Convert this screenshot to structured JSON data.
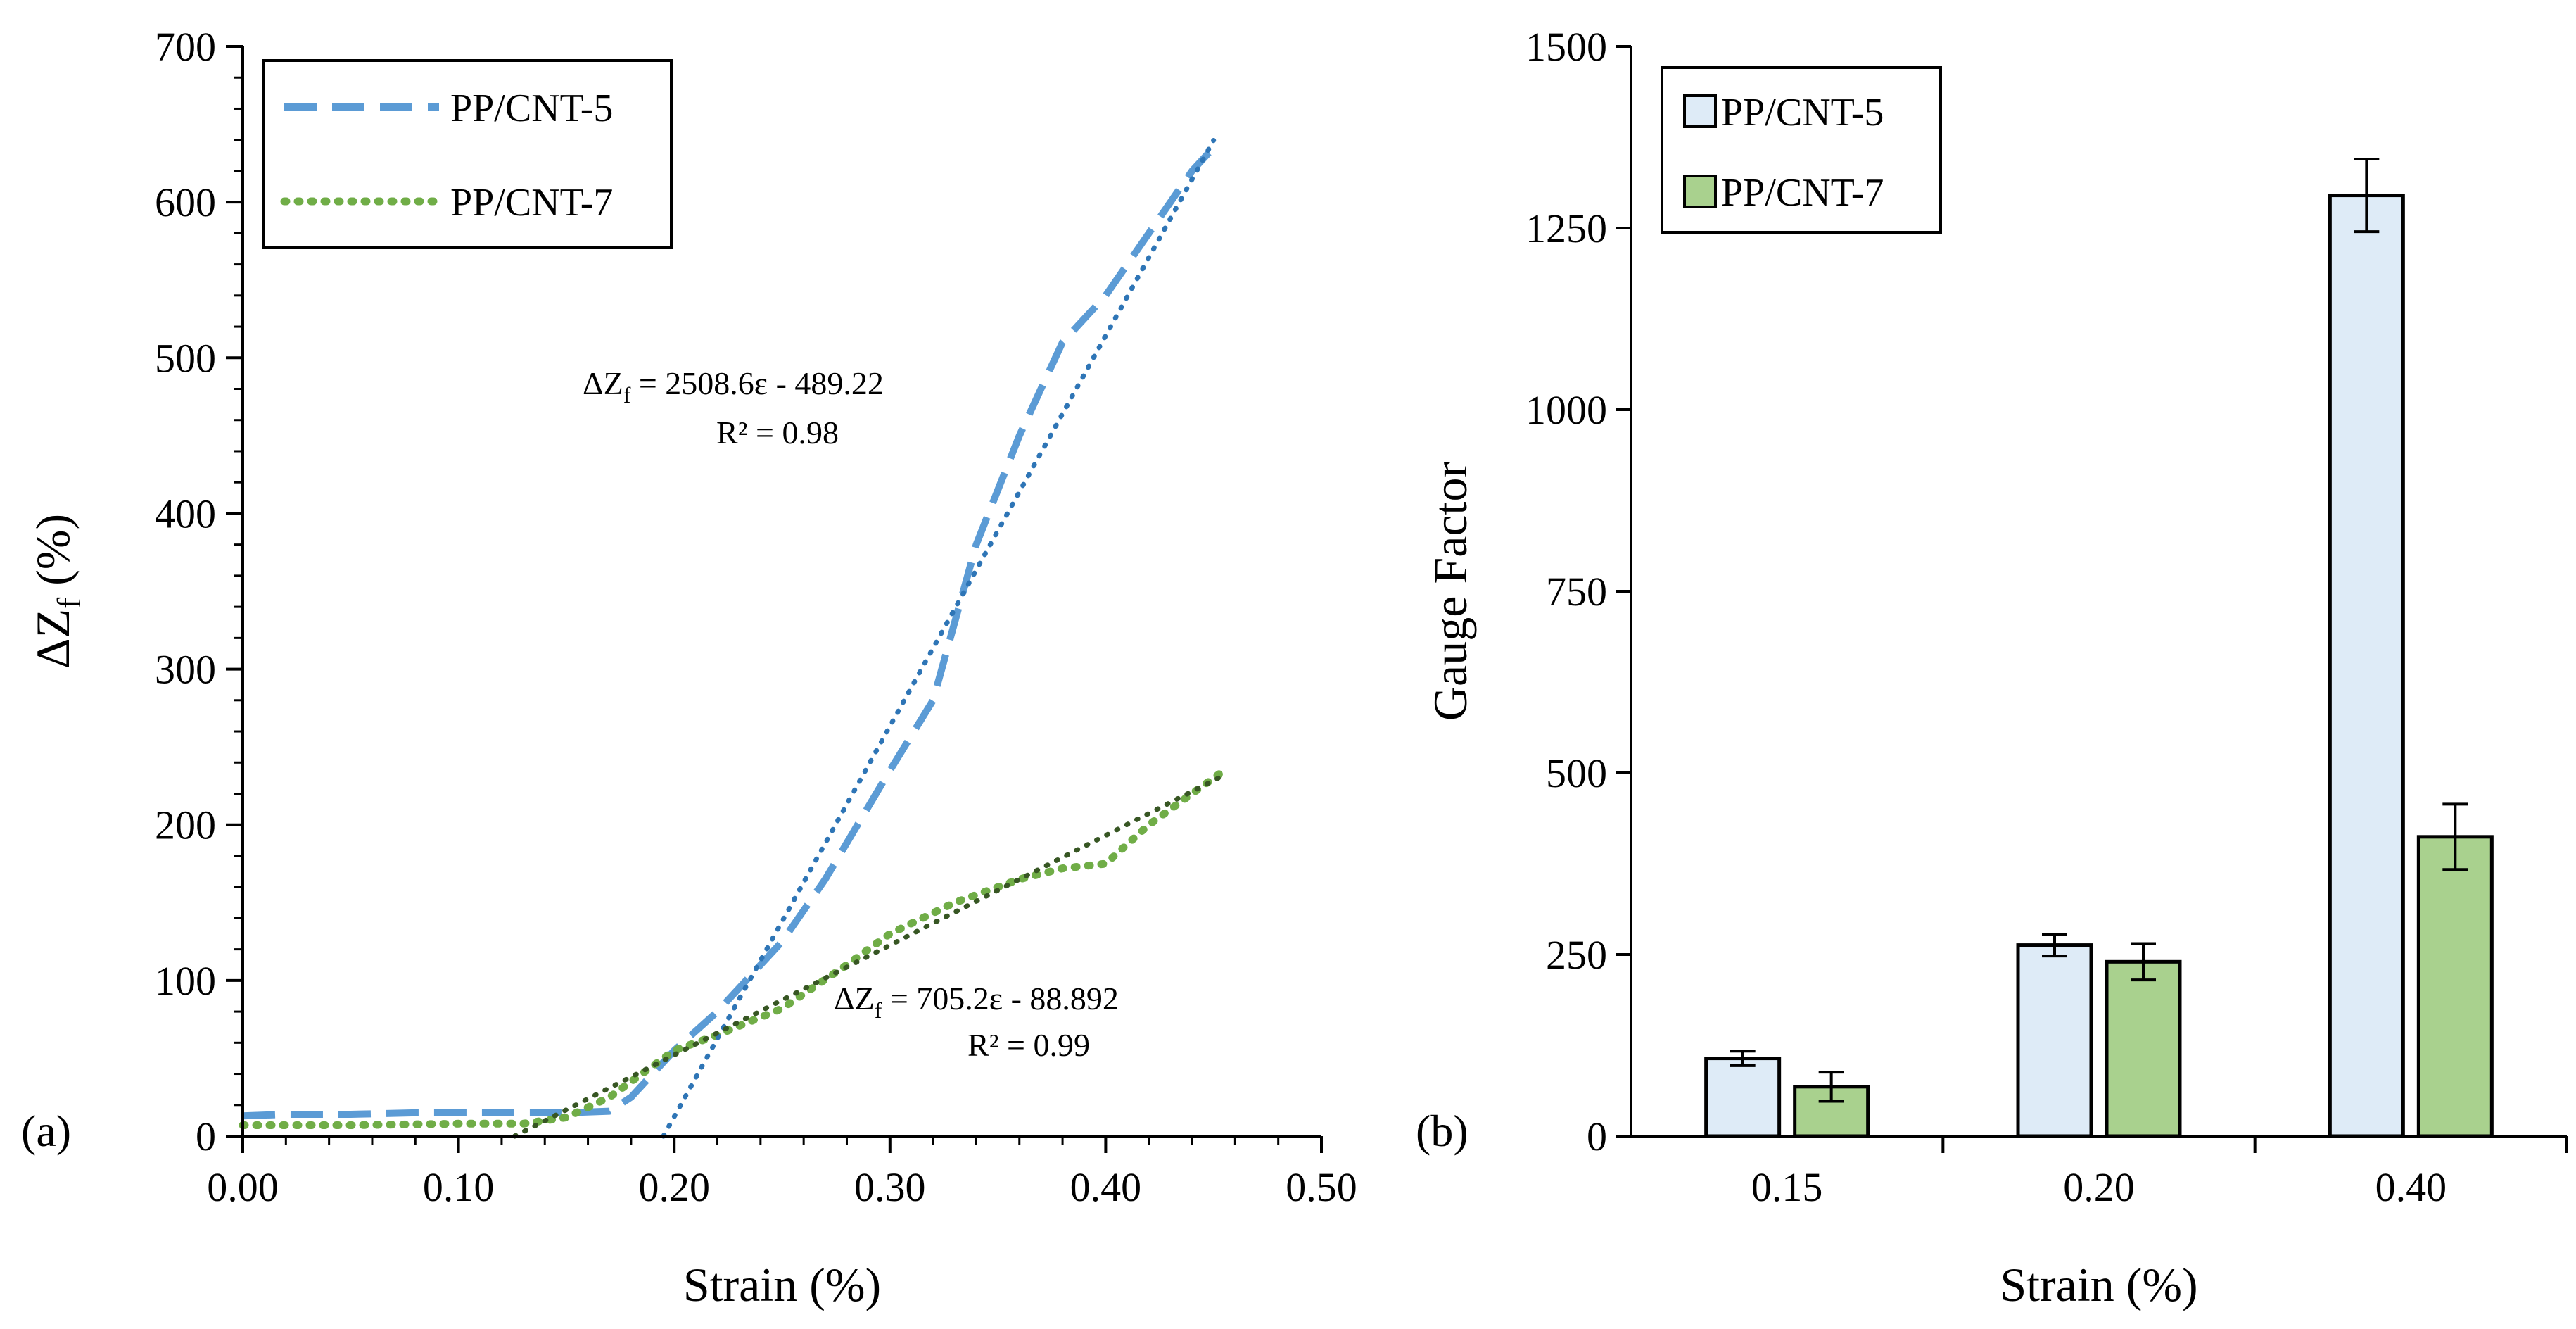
{
  "chart_data": [
    {
      "type": "line",
      "panel_label": "(a)",
      "xlabel": "Strain (%)",
      "ylabel": {
        "main": "ΔZ",
        "sub": "f",
        "suffix": " (%)"
      },
      "xlim": [
        0,
        0.5
      ],
      "ylim": [
        0,
        700
      ],
      "x_ticks": [
        "0.00",
        "0.10",
        "0.20",
        "0.30",
        "0.40",
        "0.50"
      ],
      "y_ticks": [
        "0",
        "100",
        "200",
        "300",
        "400",
        "500",
        "600",
        "700"
      ],
      "legend_position": "top-left",
      "series": [
        {
          "name": "PP/CNT-5",
          "style": "dashed",
          "color": "#5b9bd5",
          "x": [
            0.0,
            0.02,
            0.05,
            0.08,
            0.1,
            0.13,
            0.15,
            0.17,
            0.18,
            0.19,
            0.2,
            0.22,
            0.25,
            0.27,
            0.3,
            0.32,
            0.34,
            0.36,
            0.38,
            0.4,
            0.42,
            0.44,
            0.45
          ],
          "y": [
            13,
            14,
            14,
            15,
            15,
            15,
            15,
            16,
            25,
            40,
            55,
            80,
            125,
            165,
            235,
            280,
            380,
            450,
            510,
            540,
            580,
            620,
            635
          ]
        },
        {
          "name": "PP/CNT-7",
          "style": "dotted",
          "color": "#70ad47",
          "x": [
            0.0,
            0.05,
            0.1,
            0.13,
            0.15,
            0.17,
            0.2,
            0.22,
            0.25,
            0.28,
            0.3,
            0.33,
            0.36,
            0.38,
            0.4,
            0.42,
            0.455
          ],
          "y": [
            7,
            7,
            8,
            8,
            12,
            25,
            55,
            65,
            82,
            110,
            130,
            150,
            165,
            172,
            175,
            200,
            235
          ]
        }
      ],
      "trendlines": [
        {
          "series": "PP/CNT-5",
          "slope": 2508.6,
          "intercept": -489.22,
          "x_range": [
            0.195,
            0.45
          ],
          "color": "#2e75b6",
          "equation": "= 2508.6ε - 489.22",
          "r2": "R² = 0.98"
        },
        {
          "series": "PP/CNT-7",
          "slope": 705.2,
          "intercept": -88.892,
          "x_range": [
            0.126,
            0.455
          ],
          "color": "#375623",
          "equation": "= 705.2ε - 88.892",
          "r2": "R² = 0.99"
        }
      ]
    },
    {
      "type": "bar",
      "panel_label": "(b)",
      "xlabel": "Strain (%)",
      "ylabel": "Gauge Factor",
      "ylim": [
        0,
        1500
      ],
      "y_ticks": [
        "0",
        "250",
        "500",
        "750",
        "1000",
        "1250",
        "1500"
      ],
      "categories": [
        "0.15",
        "0.20",
        "0.40"
      ],
      "legend_position": "top-left",
      "series": [
        {
          "name": "PP/CNT-5",
          "color": "#deebf7",
          "values": [
            107,
            263,
            1295
          ],
          "errors": [
            10,
            15,
            50
          ]
        },
        {
          "name": "PP/CNT-7",
          "color": "#a9d18e",
          "values": [
            68,
            240,
            412
          ],
          "errors": [
            20,
            25,
            45
          ]
        }
      ]
    }
  ]
}
